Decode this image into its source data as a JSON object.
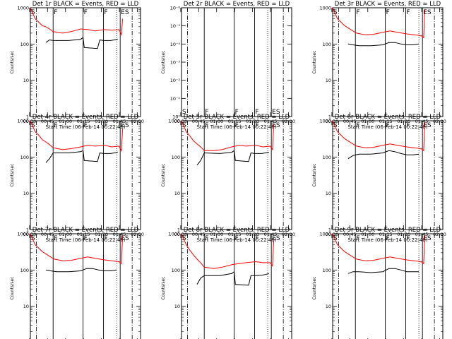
{
  "colors": {
    "events": "#000000",
    "lld": "#ff0000",
    "background": "#ffffff"
  },
  "figure": {
    "xlabel": "Start Time (06-Feb-14 00:22:40)",
    "ylabel": "Counts/sec",
    "xticks": [
      "00:30",
      "00:45",
      "01:00",
      "01:15",
      "01:30",
      "01:45",
      "02:00"
    ],
    "log_ticks": [
      "1",
      "10",
      "100",
      "1000"
    ],
    "low_ticks": [
      "10⁻⁶",
      "10⁻⁵",
      "10⁻⁴",
      "10⁻³",
      "10⁻²",
      "10⁻¹",
      "10⁰"
    ]
  },
  "chart_data": [
    {
      "title": "Det 1r BLACK = Events, RED = LLD",
      "type": "line",
      "ylim": [
        1,
        1000
      ],
      "scale": "log",
      "xlim_min": [
        8,
        100
      ],
      "markers": [
        {
          "t": 8,
          "label": "S"
        },
        {
          "t": 27,
          "label": "F"
        },
        {
          "t": 52,
          "label": "F"
        },
        {
          "t": 69,
          "label": "F"
        },
        {
          "t": 83,
          "label": "ES"
        }
      ],
      "series": [
        {
          "name": "Events",
          "x": [
            8,
            20,
            21,
            24,
            27,
            40,
            50,
            52,
            53,
            64,
            66,
            69,
            75,
            78,
            81,
            85
          ],
          "values": [
            null,
            null,
            110,
            130,
            125,
            125,
            135,
            150,
            80,
            75,
            130,
            125,
            125,
            130,
            135,
            null
          ]
        },
        {
          "name": "LLD",
          "x": [
            8,
            10,
            12,
            15,
            18,
            21,
            24,
            27,
            35,
            42,
            50,
            56,
            62,
            70,
            76,
            82,
            84,
            85
          ],
          "values": [
            1000,
            700,
            500,
            400,
            320,
            300,
            260,
            220,
            200,
            220,
            260,
            250,
            230,
            250,
            240,
            250,
            180,
            500
          ]
        }
      ]
    },
    {
      "title": "Det 2r BLACK = Events, RED = LLD",
      "type": "line",
      "ylim": [
        1,
        1e-06
      ],
      "scale": "linear",
      "xlim_min": [
        8,
        100
      ],
      "markers": [
        {
          "t": 8,
          "label": "S"
        },
        {
          "t": 27,
          "label": "F"
        },
        {
          "t": 52,
          "label": "F"
        },
        {
          "t": 69,
          "label": "F"
        },
        {
          "t": 83,
          "label": "ES"
        }
      ],
      "series": []
    },
    {
      "title": "Det 3r BLACK = Events, RED = LLD",
      "type": "line",
      "ylim": [
        1,
        1000
      ],
      "scale": "log",
      "xlim_min": [
        8,
        100
      ],
      "markers": [
        {
          "t": 8,
          "label": "S"
        },
        {
          "t": 27,
          "label": "F"
        },
        {
          "t": 52,
          "label": "F"
        },
        {
          "t": 69,
          "label": "F"
        },
        {
          "t": 83,
          "label": "ES"
        }
      ],
      "series": [
        {
          "name": "Events",
          "x": [
            8,
            20,
            21,
            25,
            30,
            40,
            50,
            55,
            60,
            65,
            70,
            75,
            80,
            85
          ],
          "values": [
            null,
            null,
            100,
            95,
            90,
            90,
            95,
            110,
            110,
            100,
            95,
            95,
            100,
            null
          ]
        },
        {
          "name": "LLD",
          "x": [
            8,
            10,
            12,
            15,
            18,
            21,
            24,
            28,
            35,
            42,
            50,
            56,
            62,
            70,
            76,
            82,
            84,
            85
          ],
          "values": [
            1000,
            700,
            500,
            400,
            320,
            280,
            240,
            200,
            180,
            185,
            210,
            230,
            210,
            190,
            180,
            170,
            150,
            900
          ]
        }
      ]
    },
    {
      "title": "Det 4r BLACK = Events, RED = LLD",
      "type": "line",
      "ylim": [
        1,
        1000
      ],
      "scale": "log",
      "xlim_min": [
        8,
        100
      ],
      "markers": [
        {
          "t": 8,
          "label": "S"
        },
        {
          "t": 27,
          "label": "F"
        },
        {
          "t": 52,
          "label": "F"
        },
        {
          "t": 69,
          "label": "F"
        },
        {
          "t": 83,
          "label": "ES"
        }
      ],
      "series": [
        {
          "name": "Events",
          "x": [
            8,
            20,
            21,
            24,
            27,
            40,
            50,
            52,
            53,
            64,
            66,
            69,
            75,
            78,
            81,
            85
          ],
          "values": [
            null,
            null,
            70,
            90,
            130,
            130,
            140,
            150,
            80,
            75,
            130,
            125,
            125,
            130,
            135,
            null
          ]
        },
        {
          "name": "LLD",
          "x": [
            8,
            10,
            12,
            15,
            18,
            21,
            24,
            27,
            35,
            42,
            50,
            56,
            62,
            70,
            76,
            82,
            84,
            85
          ],
          "values": [
            1000,
            700,
            500,
            400,
            300,
            260,
            220,
            180,
            160,
            170,
            190,
            210,
            200,
            210,
            190,
            200,
            150,
            600
          ]
        }
      ]
    },
    {
      "title": "Det 5r BLACK = Events, RED = LLD",
      "type": "line",
      "ylim": [
        1,
        1000
      ],
      "scale": "log",
      "xlim_min": [
        8,
        100
      ],
      "markers": [
        {
          "t": 8,
          "label": "S"
        },
        {
          "t": 27,
          "label": "F"
        },
        {
          "t": 52,
          "label": "F"
        },
        {
          "t": 69,
          "label": "F"
        },
        {
          "t": 83,
          "label": "ES"
        }
      ],
      "series": [
        {
          "name": "Events",
          "x": [
            8,
            20,
            21,
            24,
            27,
            40,
            50,
            52,
            53,
            64,
            66,
            69,
            75,
            78,
            81,
            85
          ],
          "values": [
            null,
            null,
            60,
            80,
            130,
            125,
            135,
            150,
            80,
            75,
            130,
            125,
            125,
            130,
            135,
            null
          ]
        },
        {
          "name": "LLD",
          "x": [
            8,
            10,
            12,
            15,
            18,
            21,
            24,
            27,
            35,
            42,
            50,
            56,
            62,
            70,
            76,
            82,
            84,
            85
          ],
          "values": [
            1000,
            700,
            500,
            380,
            280,
            230,
            190,
            150,
            150,
            160,
            190,
            210,
            200,
            210,
            190,
            200,
            160,
            800
          ]
        }
      ]
    },
    {
      "title": "Det 6r BLACK = Events, RED = LLD",
      "type": "line",
      "ylim": [
        1,
        1000
      ],
      "scale": "log",
      "xlim_min": [
        8,
        100
      ],
      "markers": [
        {
          "t": 8,
          "label": "S"
        },
        {
          "t": 27,
          "label": "F"
        },
        {
          "t": 52,
          "label": "F"
        },
        {
          "t": 69,
          "label": "F"
        },
        {
          "t": 83,
          "label": "ES"
        }
      ],
      "series": [
        {
          "name": "Events",
          "x": [
            8,
            20,
            21,
            25,
            30,
            40,
            50,
            55,
            60,
            65,
            70,
            75,
            80,
            85
          ],
          "values": [
            null,
            null,
            90,
            110,
            120,
            120,
            130,
            150,
            140,
            125,
            115,
            115,
            120,
            null
          ]
        },
        {
          "name": "LLD",
          "x": [
            8,
            10,
            12,
            15,
            18,
            21,
            24,
            28,
            35,
            42,
            50,
            56,
            62,
            70,
            76,
            82,
            84,
            85
          ],
          "values": [
            1000,
            700,
            500,
            400,
            320,
            280,
            240,
            200,
            180,
            185,
            210,
            230,
            210,
            190,
            180,
            170,
            150,
            900
          ]
        }
      ]
    },
    {
      "title": "Det 7r BLACK = Events, RED = LLD",
      "type": "line",
      "ylim": [
        1,
        1000
      ],
      "scale": "log",
      "xlim_min": [
        8,
        100
      ],
      "markers": [
        {
          "t": 8,
          "label": "S"
        },
        {
          "t": 27,
          "label": "F"
        },
        {
          "t": 52,
          "label": "F"
        },
        {
          "t": 69,
          "label": "F"
        },
        {
          "t": 83,
          "label": "ES"
        }
      ],
      "series": [
        {
          "name": "Events",
          "x": [
            8,
            20,
            21,
            25,
            30,
            40,
            50,
            55,
            60,
            65,
            70,
            75,
            80,
            85
          ],
          "values": [
            null,
            null,
            100,
            95,
            90,
            90,
            95,
            110,
            110,
            100,
            95,
            95,
            100,
            null
          ]
        },
        {
          "name": "LLD",
          "x": [
            8,
            10,
            12,
            15,
            18,
            21,
            24,
            28,
            35,
            42,
            50,
            56,
            62,
            70,
            76,
            82,
            84,
            85
          ],
          "values": [
            1000,
            700,
            500,
            400,
            320,
            280,
            240,
            200,
            180,
            185,
            210,
            230,
            210,
            190,
            180,
            170,
            150,
            900
          ]
        }
      ]
    },
    {
      "title": "Det 8r BLACK = Events, RED = LLD",
      "type": "line",
      "ylim": [
        1,
        1000
      ],
      "scale": "log",
      "xlim_min": [
        8,
        100
      ],
      "markers": [
        {
          "t": 8,
          "label": "S"
        },
        {
          "t": 27,
          "label": "F"
        },
        {
          "t": 52,
          "label": "F"
        },
        {
          "t": 69,
          "label": "F"
        },
        {
          "t": 83,
          "label": "ES"
        }
      ],
      "series": [
        {
          "name": "Events",
          "x": [
            8,
            20,
            21,
            24,
            27,
            40,
            50,
            52,
            53,
            64,
            66,
            69,
            75,
            78,
            81,
            85
          ],
          "values": [
            null,
            null,
            40,
            60,
            70,
            70,
            80,
            90,
            40,
            38,
            70,
            70,
            72,
            75,
            80,
            null
          ]
        },
        {
          "name": "LLD",
          "x": [
            8,
            10,
            12,
            15,
            18,
            21,
            24,
            27,
            35,
            42,
            50,
            56,
            62,
            70,
            76,
            82,
            84,
            85
          ],
          "values": [
            1000,
            700,
            500,
            350,
            260,
            200,
            160,
            120,
            110,
            120,
            140,
            150,
            160,
            170,
            160,
            160,
            130,
            700
          ]
        }
      ]
    },
    {
      "title": "Det 9r BLACK = Events, RED = LLD",
      "type": "line",
      "ylim": [
        1,
        1000
      ],
      "scale": "log",
      "xlim_min": [
        8,
        100
      ],
      "markers": [
        {
          "t": 8,
          "label": "S"
        },
        {
          "t": 27,
          "label": "F"
        },
        {
          "t": 52,
          "label": "F"
        },
        {
          "t": 69,
          "label": "F"
        },
        {
          "t": 83,
          "label": "ES"
        }
      ],
      "series": [
        {
          "name": "Events",
          "x": [
            8,
            20,
            21,
            25,
            30,
            40,
            50,
            55,
            60,
            65,
            70,
            75,
            80,
            85
          ],
          "values": [
            null,
            null,
            80,
            90,
            90,
            85,
            90,
            110,
            110,
            100,
            90,
            90,
            90,
            null
          ]
        },
        {
          "name": "LLD",
          "x": [
            8,
            10,
            12,
            15,
            18,
            21,
            24,
            28,
            35,
            42,
            50,
            56,
            62,
            70,
            76,
            82,
            84,
            85
          ],
          "values": [
            1000,
            700,
            500,
            400,
            320,
            280,
            240,
            200,
            180,
            185,
            210,
            230,
            210,
            190,
            180,
            170,
            150,
            900
          ]
        }
      ]
    }
  ]
}
